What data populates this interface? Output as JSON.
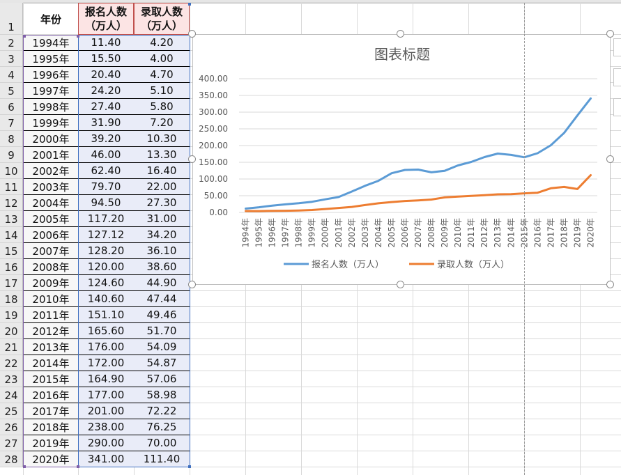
{
  "headers": {
    "year": "年份",
    "applicants": [
      "报名人数",
      "（万人）"
    ],
    "admitted": [
      "录取人数",
      "（万人）"
    ]
  },
  "row_numbers": [
    "1",
    "2",
    "3",
    "4",
    "5",
    "6",
    "7",
    "8",
    "9",
    "10",
    "11",
    "12",
    "13",
    "14",
    "15",
    "16",
    "17",
    "18",
    "19",
    "20",
    "21",
    "22",
    "23",
    "24",
    "25",
    "26",
    "27",
    "28"
  ],
  "rows": [
    {
      "year": "1994年",
      "applicants": "11.40",
      "admitted": "4.20"
    },
    {
      "year": "1995年",
      "applicants": "15.50",
      "admitted": "4.00"
    },
    {
      "year": "1996年",
      "applicants": "20.40",
      "admitted": "4.70"
    },
    {
      "year": "1997年",
      "applicants": "24.20",
      "admitted": "5.10"
    },
    {
      "year": "1998年",
      "applicants": "27.40",
      "admitted": "5.80"
    },
    {
      "year": "1999年",
      "applicants": "31.90",
      "admitted": "7.20"
    },
    {
      "year": "2000年",
      "applicants": "39.20",
      "admitted": "10.30"
    },
    {
      "year": "2001年",
      "applicants": "46.00",
      "admitted": "13.30"
    },
    {
      "year": "2002年",
      "applicants": "62.40",
      "admitted": "16.40"
    },
    {
      "year": "2003年",
      "applicants": "79.70",
      "admitted": "22.00"
    },
    {
      "year": "2004年",
      "applicants": "94.50",
      "admitted": "27.30"
    },
    {
      "year": "2005年",
      "applicants": "117.20",
      "admitted": "31.00"
    },
    {
      "year": "2006年",
      "applicants": "127.12",
      "admitted": "34.20"
    },
    {
      "year": "2007年",
      "applicants": "128.20",
      "admitted": "36.10"
    },
    {
      "year": "2008年",
      "applicants": "120.00",
      "admitted": "38.60"
    },
    {
      "year": "2009年",
      "applicants": "124.60",
      "admitted": "44.90"
    },
    {
      "year": "2010年",
      "applicants": "140.60",
      "admitted": "47.44"
    },
    {
      "year": "2011年",
      "applicants": "151.10",
      "admitted": "49.46"
    },
    {
      "year": "2012年",
      "applicants": "165.60",
      "admitted": "51.70"
    },
    {
      "year": "2013年",
      "applicants": "176.00",
      "admitted": "54.09"
    },
    {
      "year": "2014年",
      "applicants": "172.00",
      "admitted": "54.87"
    },
    {
      "year": "2015年",
      "applicants": "164.90",
      "admitted": "57.06"
    },
    {
      "year": "2016年",
      "applicants": "177.00",
      "admitted": "58.98"
    },
    {
      "year": "2017年",
      "applicants": "201.00",
      "admitted": "72.22"
    },
    {
      "year": "2018年",
      "applicants": "238.00",
      "admitted": "76.25"
    },
    {
      "year": "2019年",
      "applicants": "290.00",
      "admitted": "70.00"
    },
    {
      "year": "2020年",
      "applicants": "341.00",
      "admitted": "111.40"
    }
  ],
  "colors": {
    "header_fill": "#fce4e4",
    "header_border": "#c0504d",
    "year_border": "#7f5fa8",
    "value_fill": "#e9ecf8",
    "value_border": "#3f6fbf",
    "series_applicants": "#5b9bd5",
    "series_admitted": "#ed7d31",
    "gridline": "#d9d9d9"
  },
  "chart_data": {
    "type": "line",
    "title": "图表标题",
    "categories": [
      "1994年",
      "1995年",
      "1996年",
      "1997年",
      "1998年",
      "1999年",
      "2000年",
      "2001年",
      "2002年",
      "2003年",
      "2004年",
      "2005年",
      "2006年",
      "2007年",
      "2008年",
      "2009年",
      "2010年",
      "2011年",
      "2012年",
      "2013年",
      "2014年",
      "2015年",
      "2016年",
      "2017年",
      "2018年",
      "2019年",
      "2020年"
    ],
    "series": [
      {
        "name": "报名人数（万人）",
        "values": [
          11.4,
          15.5,
          20.4,
          24.2,
          27.4,
          31.9,
          39.2,
          46.0,
          62.4,
          79.7,
          94.5,
          117.2,
          127.12,
          128.2,
          120.0,
          124.6,
          140.6,
          151.1,
          165.6,
          176.0,
          172.0,
          164.9,
          177.0,
          201.0,
          238.0,
          290.0,
          341.0
        ]
      },
      {
        "name": "录取人数（万人）",
        "values": [
          4.2,
          4.0,
          4.7,
          5.1,
          5.8,
          7.2,
          10.3,
          13.3,
          16.4,
          22.0,
          27.3,
          31.0,
          34.2,
          36.1,
          38.6,
          44.9,
          47.44,
          49.46,
          51.7,
          54.09,
          54.87,
          57.06,
          58.98,
          72.22,
          76.25,
          70.0,
          111.4
        ]
      }
    ],
    "yticks": [
      "0.00",
      "50.00",
      "100.00",
      "150.00",
      "200.00",
      "250.00",
      "300.00",
      "350.00",
      "400.00"
    ],
    "ylim": [
      0,
      400
    ],
    "grid": true,
    "legend": "bottom"
  }
}
